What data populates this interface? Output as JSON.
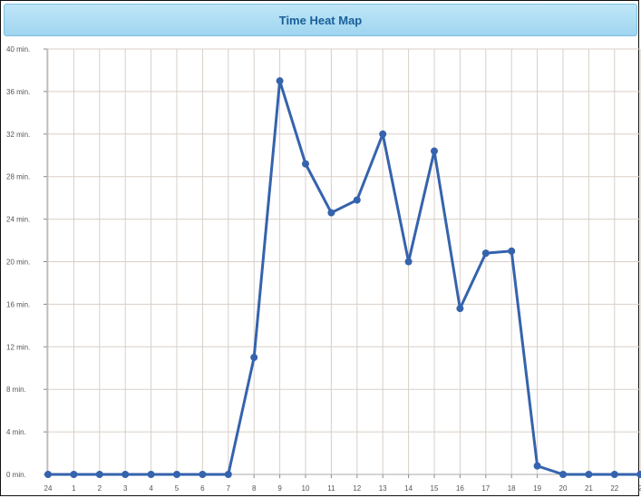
{
  "title_bar": {
    "title": "Time Heat Map"
  },
  "colors": {
    "line": "#3563ad",
    "grid": "#d9cfc7",
    "title_bg": "#a9dbf2"
  },
  "chart_data": {
    "type": "line",
    "title": "Time Heat Map",
    "xlabel": "",
    "ylabel": "",
    "grid": true,
    "ylim": [
      0,
      40
    ],
    "y_ticks": [
      {
        "value": 0,
        "label": "0 min."
      },
      {
        "value": 4,
        "label": "4 min."
      },
      {
        "value": 8,
        "label": "8 min."
      },
      {
        "value": 12,
        "label": "12 min."
      },
      {
        "value": 16,
        "label": "16 min."
      },
      {
        "value": 20,
        "label": "20 min."
      },
      {
        "value": 24,
        "label": "24 min."
      },
      {
        "value": 28,
        "label": "28 min."
      },
      {
        "value": 32,
        "label": "32 min."
      },
      {
        "value": 36,
        "label": "36 min."
      },
      {
        "value": 40,
        "label": "40 min."
      }
    ],
    "categories": [
      "24",
      "1",
      "2",
      "3",
      "4",
      "5",
      "6",
      "7",
      "8",
      "9",
      "10",
      "11",
      "12",
      "13",
      "14",
      "15",
      "16",
      "17",
      "18",
      "19",
      "20",
      "21",
      "22",
      "2"
    ],
    "series": [
      {
        "values": [
          0,
          0,
          0,
          0,
          0,
          0,
          0,
          0,
          11,
          37,
          29.2,
          24.6,
          25.8,
          32,
          20,
          30.4,
          15.6,
          20.8,
          21,
          0.8,
          0,
          0,
          0,
          0
        ]
      }
    ]
  }
}
